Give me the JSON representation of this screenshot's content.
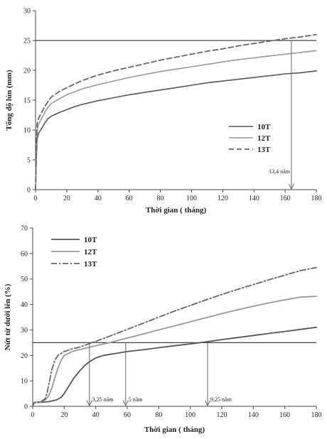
{
  "chart_data": [
    {
      "type": "line",
      "xlabel": "Thời gian ( tháng)",
      "ylabel": "Tổng độ lún (mm)",
      "xlim": [
        0,
        180
      ],
      "ylim": [
        0,
        30
      ],
      "xticks": [
        0,
        20,
        40,
        60,
        80,
        100,
        120,
        140,
        160,
        180
      ],
      "yticks": [
        0,
        5,
        10,
        15,
        20,
        25,
        30
      ],
      "legend_position": "right-middle",
      "reference_lines": [
        {
          "y": 25
        }
      ],
      "annotations": [
        {
          "x": 164,
          "text": "13,4 năm"
        }
      ],
      "series": [
        {
          "name": "10T",
          "color": "#555555",
          "dash": "solid",
          "width": 1.6,
          "x": [
            0,
            0.5,
            1,
            2,
            4,
            6,
            8,
            10,
            15,
            20,
            25,
            30,
            40,
            50,
            60,
            70,
            80,
            90,
            100,
            110,
            120,
            130,
            140,
            150,
            160,
            170,
            180
          ],
          "y": [
            0,
            5,
            8.5,
            9.5,
            10.3,
            11.2,
            11.9,
            12.3,
            12.9,
            13.4,
            13.9,
            14.3,
            14.9,
            15.4,
            15.9,
            16.3,
            16.7,
            17.1,
            17.5,
            17.9,
            18.2,
            18.5,
            18.8,
            19.1,
            19.4,
            19.6,
            19.9
          ]
        },
        {
          "name": "12T",
          "color": "#999999",
          "dash": "solid",
          "width": 1.6,
          "x": [
            0,
            0.5,
            1,
            2,
            4,
            6,
            8,
            10,
            15,
            20,
            25,
            30,
            40,
            50,
            60,
            70,
            80,
            90,
            100,
            110,
            120,
            130,
            140,
            150,
            160,
            170,
            180
          ],
          "y": [
            0,
            6,
            10,
            11,
            12,
            13,
            13.8,
            14.4,
            15.2,
            15.9,
            16.4,
            16.9,
            17.6,
            18.2,
            18.8,
            19.3,
            19.8,
            20.2,
            20.6,
            21.0,
            21.4,
            21.8,
            22.1,
            22.4,
            22.7,
            23.0,
            23.3
          ]
        },
        {
          "name": "13T",
          "color": "#666666",
          "dash": "7,4",
          "width": 1.8,
          "x": [
            0,
            0.5,
            1,
            2,
            4,
            6,
            8,
            10,
            15,
            20,
            25,
            30,
            40,
            50,
            60,
            70,
            80,
            90,
            100,
            110,
            120,
            130,
            140,
            150,
            160,
            170,
            180
          ],
          "y": [
            0,
            7,
            11,
            12,
            13,
            14,
            14.8,
            15.5,
            16.4,
            17.1,
            17.7,
            18.3,
            19.2,
            19.9,
            20.5,
            21.1,
            21.7,
            22.2,
            22.7,
            23.2,
            23.6,
            24.1,
            24.5,
            24.9,
            25.3,
            25.6,
            26.0
          ]
        }
      ]
    },
    {
      "type": "line",
      "xlabel": "Thời gian ( tháng)",
      "ylabel": "Nứt từ dưới lên (%)",
      "xlim": [
        0,
        180
      ],
      "ylim": [
        0,
        70
      ],
      "xticks": [
        0,
        20,
        40,
        60,
        80,
        100,
        120,
        140,
        160,
        180
      ],
      "yticks": [
        0,
        10,
        20,
        30,
        40,
        50,
        60,
        70
      ],
      "legend_position": "top-left",
      "reference_lines": [
        {
          "y": 25
        }
      ],
      "annotations": [
        {
          "x": 36,
          "text": "3,25 năm"
        },
        {
          "x": 59,
          "text": "5 năm"
        },
        {
          "x": 111,
          "text": "9,25 năm"
        }
      ],
      "series": [
        {
          "name": "10T",
          "color": "#555555",
          "dash": "solid",
          "width": 1.8,
          "x": [
            0,
            1,
            5,
            10,
            15,
            18,
            20,
            23,
            26,
            30,
            33,
            36,
            40,
            45,
            50,
            60,
            70,
            80,
            90,
            100,
            110,
            120,
            130,
            140,
            150,
            160,
            170,
            180
          ],
          "y": [
            0,
            1.5,
            1.6,
            1.8,
            2.5,
            3.5,
            5,
            8,
            11,
            14,
            16,
            17.5,
            19,
            20,
            20.5,
            21.5,
            22.2,
            23,
            23.8,
            24.5,
            25.3,
            26.2,
            27,
            27.8,
            28.6,
            29.4,
            30.2,
            31
          ]
        },
        {
          "name": "12T",
          "color": "#999999",
          "dash": "solid",
          "width": 1.8,
          "x": [
            0,
            1,
            5,
            8,
            10,
            12,
            14,
            16,
            18,
            20,
            25,
            30,
            40,
            50,
            60,
            70,
            80,
            90,
            100,
            110,
            120,
            130,
            140,
            150,
            160,
            170,
            180
          ],
          "y": [
            0,
            1.5,
            1.7,
            2.5,
            4,
            7,
            11,
            15,
            18,
            20,
            21.5,
            22.3,
            23.8,
            25.2,
            26.8,
            28.4,
            30,
            31.6,
            33.2,
            34.8,
            36.4,
            37.9,
            39.3,
            40.6,
            41.8,
            42.9,
            43.2
          ]
        },
        {
          "name": "13T",
          "color": "#666666",
          "dash": "8,3,2,3",
          "width": 1.8,
          "x": [
            0,
            1,
            5,
            8,
            9,
            10,
            11,
            12,
            14,
            16,
            20,
            25,
            30,
            40,
            50,
            60,
            70,
            80,
            90,
            100,
            110,
            120,
            130,
            140,
            150,
            160,
            170,
            180
          ],
          "y": [
            0,
            1.5,
            1.8,
            3,
            5,
            8,
            11,
            14,
            18,
            20,
            21.5,
            22.5,
            23.3,
            25.5,
            27.8,
            30.2,
            32.6,
            35,
            37.4,
            39.6,
            41.8,
            43.9,
            45.9,
            47.8,
            49.7,
            51.5,
            53.3,
            54.5
          ]
        }
      ]
    }
  ]
}
